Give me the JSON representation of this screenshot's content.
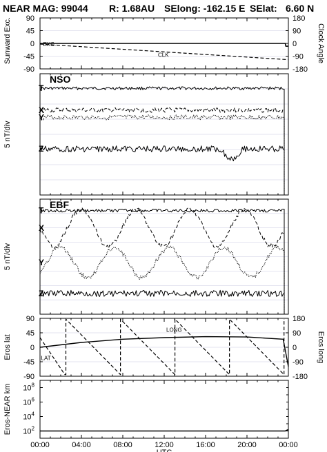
{
  "header": {
    "mission": "NEAR MAG: 99044",
    "r": "R: 1.68AU",
    "selong": "SElong: -162.15 E",
    "selat": "SElat:",
    "selat_value": "6.60 N"
  },
  "chart_data": [
    {
      "type": "line",
      "panel": "sunward",
      "ylabel_left": "Sunward Exc.",
      "ylabel_right": "Clock Angle",
      "yticks_left": [
        "90",
        "45",
        "0",
        "-45",
        "-90"
      ],
      "yticks_right": [
        "180",
        "90",
        "0",
        "-90",
        "-180"
      ],
      "ylim_left": [
        -90,
        90
      ],
      "ylim_right": [
        -180,
        180
      ],
      "series": [
        {
          "name": "EXC.",
          "style": "solid",
          "x": [
            0,
            23.7,
            23.75,
            24
          ],
          "y": [
            0,
            0,
            -10,
            -10
          ]
        },
        {
          "name": "CLK",
          "style": "dashed",
          "x": [
            0,
            24
          ],
          "y_right": [
            -5,
            -115
          ]
        }
      ],
      "annotations": [
        "EXC.",
        "CLK"
      ]
    },
    {
      "type": "line",
      "panel": "NSO",
      "title": "NSO",
      "ylabel": "5 nT/div",
      "series": [
        {
          "name": "T",
          "style": "solid",
          "level": 0.12
        },
        {
          "name": "X",
          "style": "dashed",
          "level": 0.3
        },
        {
          "name": "Y",
          "style": "dotted",
          "level": 0.36
        },
        {
          "name": "Z",
          "style": "solid",
          "level": 0.62
        }
      ],
      "component_labels": [
        "T",
        "X",
        "Y",
        "Z"
      ]
    },
    {
      "type": "line",
      "panel": "EBF",
      "title": "EBF",
      "ylabel": "5 nT/div",
      "series": [
        {
          "name": "T",
          "style": "solid",
          "level": 0.1
        },
        {
          "name": "X",
          "style": "dashed",
          "level": 0.25
        },
        {
          "name": "Y",
          "style": "dotted",
          "level": 0.55
        },
        {
          "name": "Z",
          "style": "solid",
          "level": 0.82
        }
      ],
      "component_labels": [
        "T",
        "X",
        "Y",
        "Z"
      ]
    },
    {
      "type": "line",
      "panel": "eros",
      "ylabel_left": "Eros lat",
      "ylabel_right": "Eros long",
      "yticks_left": [
        "90",
        "45",
        "0",
        "-45",
        "-90"
      ],
      "yticks_right": [
        "180",
        "90",
        "0",
        "-90",
        "-180"
      ],
      "ylim_left": [
        -90,
        90
      ],
      "ylim_right": [
        -180,
        180
      ],
      "series": [
        {
          "name": "LONG",
          "style": "solid",
          "x": [
            0,
            4,
            8,
            12,
            16,
            20,
            23.5,
            24
          ],
          "y": [
            0,
            15,
            25,
            30,
            33,
            32,
            25,
            -60
          ]
        },
        {
          "name": "LAT",
          "style": "dashed",
          "rotation_period_h": 5.27
        }
      ],
      "annotations": [
        "LONG",
        "LAT"
      ]
    },
    {
      "type": "line",
      "panel": "distance",
      "ylabel": "Eros-NEAR km",
      "yscale": "log",
      "yticks": [
        "10^8",
        "10^6",
        "10^4",
        "10^2"
      ],
      "ylim": [
        10,
        1000000000.0
      ],
      "series": [
        {
          "name": "distance",
          "style": "solid",
          "x": [
            0,
            23.7,
            24
          ],
          "y": [
            100,
            100,
            160
          ]
        }
      ]
    }
  ],
  "xaxis": {
    "label": "UTC",
    "ticks": [
      "00:00",
      "04:00",
      "08:00",
      "12:00",
      "16:00",
      "20:00",
      "00:00"
    ],
    "xlim": [
      0,
      24
    ]
  }
}
